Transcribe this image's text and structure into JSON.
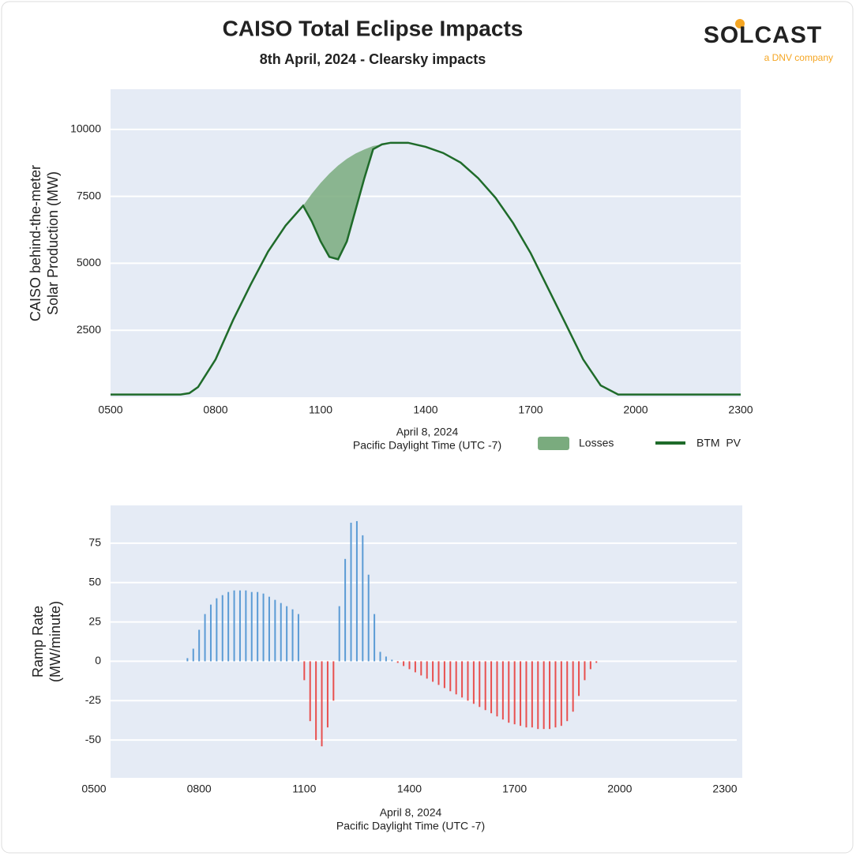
{
  "logo": {
    "name": "SOLCAST",
    "tagline": "a DNV company"
  },
  "chart_data": [
    {
      "type": "line",
      "title": "CAISO Total Eclipse Impacts",
      "subtitle": "8th April, 2024 - Clearsky impacts",
      "ylabel": [
        "CAISO behind-the-meter",
        "Solar Production (MW)"
      ],
      "xlabel": [
        "April 8, 2024",
        "Pacific Daylight Time (UTC -7)"
      ],
      "x": [
        300,
        420,
        435,
        450,
        480,
        510,
        540,
        570,
        600,
        630,
        645,
        660,
        675,
        690,
        705,
        720,
        735,
        750,
        765,
        780,
        810,
        840,
        870,
        900,
        930,
        960,
        990,
        1020,
        1050,
        1080,
        1110,
        1140,
        1170,
        1380
      ],
      "series": [
        {
          "name": "Losses",
          "color": "#7aab7e",
          "fill": true,
          "values": [
            null,
            null,
            null,
            null,
            null,
            null,
            null,
            null,
            null,
            7150,
            7600,
            8000,
            8350,
            8650,
            8900,
            9100,
            9250,
            9380,
            9440,
            null,
            null,
            null,
            null,
            null,
            null,
            null,
            null,
            null,
            null,
            null,
            null,
            null,
            null,
            null
          ]
        },
        {
          "name": "BTM  PV",
          "color": "#1f6b2a",
          "values": [
            100,
            100,
            150,
            380,
            1410,
            2880,
            4200,
            5440,
            6410,
            7150,
            6560,
            5820,
            5240,
            5150,
            5820,
            7000,
            8180,
            9260,
            9440,
            9500,
            9500,
            9350,
            9120,
            8760,
            8180,
            7440,
            6500,
            5380,
            4060,
            2740,
            1410,
            440,
            100,
            100
          ]
        }
      ],
      "xlim": [
        300,
        1380
      ],
      "xticks": [
        {
          "value": 300,
          "label": "0500"
        },
        {
          "value": 480,
          "label": "0800"
        },
        {
          "value": 660,
          "label": "1100"
        },
        {
          "value": 840,
          "label": "1400"
        },
        {
          "value": 1020,
          "label": "1700"
        },
        {
          "value": 1200,
          "label": "2000"
        },
        {
          "value": 1380,
          "label": "2300"
        }
      ],
      "ylim": [
        0,
        11500
      ],
      "yticks": [
        2500,
        5000,
        7500,
        10000
      ],
      "grid": true,
      "legend": "bottom-right"
    },
    {
      "type": "bar",
      "ylabel": [
        "Ramp Rate",
        "(MW/minute)"
      ],
      "xlabel": [
        "April 8, 2024",
        "Pacific Daylight Time (UTC -7)"
      ],
      "positive_color": "#5b9bd5",
      "negative_color": "#e8504f",
      "x": [
        460,
        470,
        480,
        490,
        500,
        510,
        520,
        530,
        540,
        550,
        560,
        570,
        580,
        590,
        600,
        610,
        620,
        630,
        640,
        650,
        660,
        670,
        680,
        690,
        700,
        710,
        720,
        730,
        740,
        750,
        760,
        770,
        780,
        790,
        800,
        810,
        820,
        830,
        840,
        850,
        860,
        870,
        880,
        890,
        900,
        910,
        920,
        930,
        940,
        950,
        960,
        970,
        980,
        990,
        1000,
        1010,
        1020,
        1030,
        1040,
        1050,
        1060,
        1070,
        1080,
        1090,
        1100,
        1110,
        1120,
        1130,
        1140,
        1150,
        1160
      ],
      "values": [
        2,
        8,
        20,
        30,
        36,
        40,
        42,
        44,
        45,
        45,
        45,
        44,
        44,
        43,
        41,
        39,
        37,
        35,
        33,
        30,
        -12,
        -38,
        -50,
        -54,
        -42,
        -25,
        35,
        65,
        88,
        89,
        80,
        55,
        30,
        6,
        3,
        1,
        -1,
        -3,
        -5,
        -7,
        -9,
        -11,
        -13,
        -15,
        -17,
        -19,
        -21,
        -23,
        -25,
        -27,
        -29,
        -31,
        -33,
        -35,
        -37,
        -39,
        -40,
        -41,
        -42,
        -42,
        -43,
        -43,
        -43,
        -42,
        -41,
        -38,
        -32,
        -22,
        -12,
        -5,
        -1
      ],
      "xlim": [
        300,
        1380
      ],
      "xticks": [
        {
          "value": 300,
          "label": "0500"
        },
        {
          "value": 480,
          "label": "0800"
        },
        {
          "value": 660,
          "label": "1100"
        },
        {
          "value": 840,
          "label": "1400"
        },
        {
          "value": 1020,
          "label": "1700"
        },
        {
          "value": 1200,
          "label": "2000"
        },
        {
          "value": 1380,
          "label": "2300"
        }
      ],
      "ylim": [
        -74,
        99
      ],
      "yticks": [
        -50,
        -25,
        0,
        25,
        50,
        75
      ],
      "grid": true
    }
  ]
}
